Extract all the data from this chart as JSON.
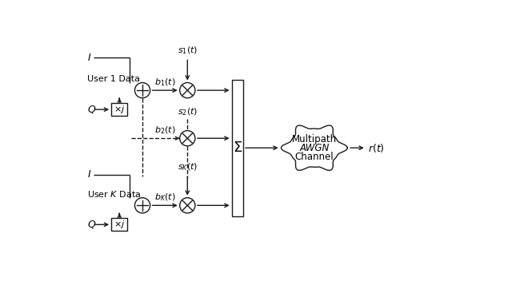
{
  "fig_width": 6.4,
  "fig_height": 3.62,
  "dpi": 100,
  "bg_color": "#ffffff",
  "line_color": "#1a1a1a",
  "line_width": 1.0,
  "sum_symbol": "Σ",
  "multipath_line1": "Multipath",
  "multipath_line2": "AWGN",
  "multipath_line3": "Channel",
  "xlim": [
    0,
    10
  ],
  "ylim": [
    0,
    5.8
  ]
}
